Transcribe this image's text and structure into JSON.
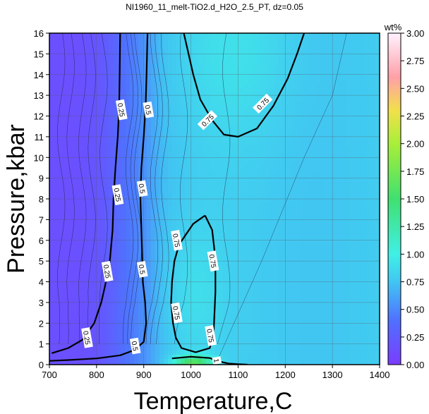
{
  "chart_data": {
    "type": "heatmap",
    "title": "NI1960_11_melt-TiO2.d_H2O_2.5_PT, dz=0.05",
    "xlabel": "Temperature,C",
    "ylabel": "Pressure,kbar",
    "xlim": [
      700,
      1400
    ],
    "ylim": [
      0,
      16
    ],
    "x_ticks": [
      "700",
      "800",
      "900",
      "1000",
      "1100",
      "1200",
      "1300",
      "1400"
    ],
    "y_ticks": [
      "0",
      "1",
      "2",
      "3",
      "4",
      "5",
      "6",
      "7",
      "8",
      "9",
      "10",
      "11",
      "12",
      "13",
      "14",
      "15",
      "16"
    ],
    "grid": true,
    "colorbar": {
      "label": "wt%",
      "range": [
        0,
        3
      ],
      "ticks": [
        "0.00",
        "0.25",
        "0.50",
        "0.75",
        "1.00",
        "1.25",
        "1.50",
        "1.75",
        "2.00",
        "2.25",
        "2.50",
        "2.75",
        "3.00"
      ],
      "stops": [
        {
          "value": 0.0,
          "color": "#7a3cff"
        },
        {
          "value": 0.4,
          "color": "#5070ff"
        },
        {
          "value": 0.75,
          "color": "#41c6f2"
        },
        {
          "value": 1.0,
          "color": "#40f0e6"
        },
        {
          "value": 1.5,
          "color": "#40e070"
        },
        {
          "value": 2.0,
          "color": "#a8ef38"
        },
        {
          "value": 2.3,
          "color": "#f2e04a"
        },
        {
          "value": 2.6,
          "color": "#ffa0a8"
        },
        {
          "value": 3.0,
          "color": "#fff2ff"
        }
      ]
    },
    "contour_levels": [
      {
        "level": "0.25",
        "points": [
          [
            850,
            16
          ],
          [
            849,
            14
          ],
          [
            848,
            12.5
          ],
          [
            845,
            11
          ],
          [
            840,
            9.5
          ],
          [
            836,
            8
          ],
          [
            834,
            6.5
          ],
          [
            828,
            5
          ],
          [
            818,
            3.8
          ],
          [
            810,
            3
          ],
          [
            795,
            2
          ],
          [
            770,
            1.2
          ],
          [
            740,
            0.8
          ],
          [
            705,
            0.55
          ]
        ],
        "labels": [
          [
            853,
            12.3
          ],
          [
            845,
            8.2
          ],
          [
            823,
            4.5
          ],
          [
            780,
            1.3
          ]
        ]
      },
      {
        "level": "0.5",
        "points": [
          [
            908,
            16
          ],
          [
            906,
            14
          ],
          [
            904,
            12.5
          ],
          [
            900,
            11
          ],
          [
            895,
            9.5
          ],
          [
            893,
            8
          ],
          [
            895,
            6.5
          ],
          [
            897,
            5
          ],
          [
            898,
            4
          ],
          [
            903,
            3
          ],
          [
            905,
            2
          ],
          [
            900,
            1.1
          ],
          [
            880,
            0.7
          ],
          [
            850,
            0.45
          ],
          [
            800,
            0.3
          ],
          [
            740,
            0.22
          ],
          [
            700,
            0.18
          ]
        ],
        "labels": [
          [
            910,
            12.3
          ],
          [
            897,
            8.5
          ],
          [
            897,
            4.6
          ],
          [
            882,
            0.9
          ]
        ]
      },
      {
        "level": "0.75",
        "points": [
          [
            1030,
            7.2
          ],
          [
            1005,
            6.8
          ],
          [
            990,
            6.3
          ],
          [
            975,
            5.8
          ],
          [
            965,
            5
          ],
          [
            960,
            4
          ],
          [
            958,
            3
          ],
          [
            962,
            2
          ],
          [
            968,
            1.3
          ],
          [
            980,
            0.8
          ],
          [
            1010,
            0.6
          ],
          [
            1040,
            0.8
          ],
          [
            1048,
            1.5
          ],
          [
            1050,
            2.5
          ],
          [
            1052,
            3.5
          ],
          [
            1052,
            4.5
          ],
          [
            1050,
            5.5
          ],
          [
            1045,
            6.5
          ],
          [
            1030,
            7.2
          ]
        ],
        "labels": [
          [
            970,
            6
          ],
          [
            970,
            2.5
          ],
          [
            1042,
            1.4
          ],
          [
            1047,
            5
          ]
        ]
      },
      {
        "level": "0.75",
        "points": [
          [
            1240,
            16
          ],
          [
            1225,
            15
          ],
          [
            1205,
            13.8
          ],
          [
            1175,
            12.5
          ],
          [
            1140,
            11.4
          ],
          [
            1100,
            11
          ],
          [
            1070,
            11.1
          ],
          [
            1045,
            11.8
          ],
          [
            1020,
            12.8
          ],
          [
            1005,
            14
          ],
          [
            995,
            15
          ],
          [
            985,
            16
          ]
        ],
        "labels": [
          [
            1152,
            12.6
          ],
          [
            1035,
            11.8
          ]
        ]
      },
      {
        "level": "1",
        "points": [
          [
            960,
            0.3
          ],
          [
            1000,
            0.38
          ],
          [
            1040,
            0.32
          ],
          [
            1060,
            0.15
          ],
          [
            1080,
            0.05
          ],
          [
            1100,
            0.02
          ],
          [
            1120,
            0
          ]
        ],
        "labels": [
          [
            1055,
            0.2
          ]
        ]
      }
    ]
  }
}
